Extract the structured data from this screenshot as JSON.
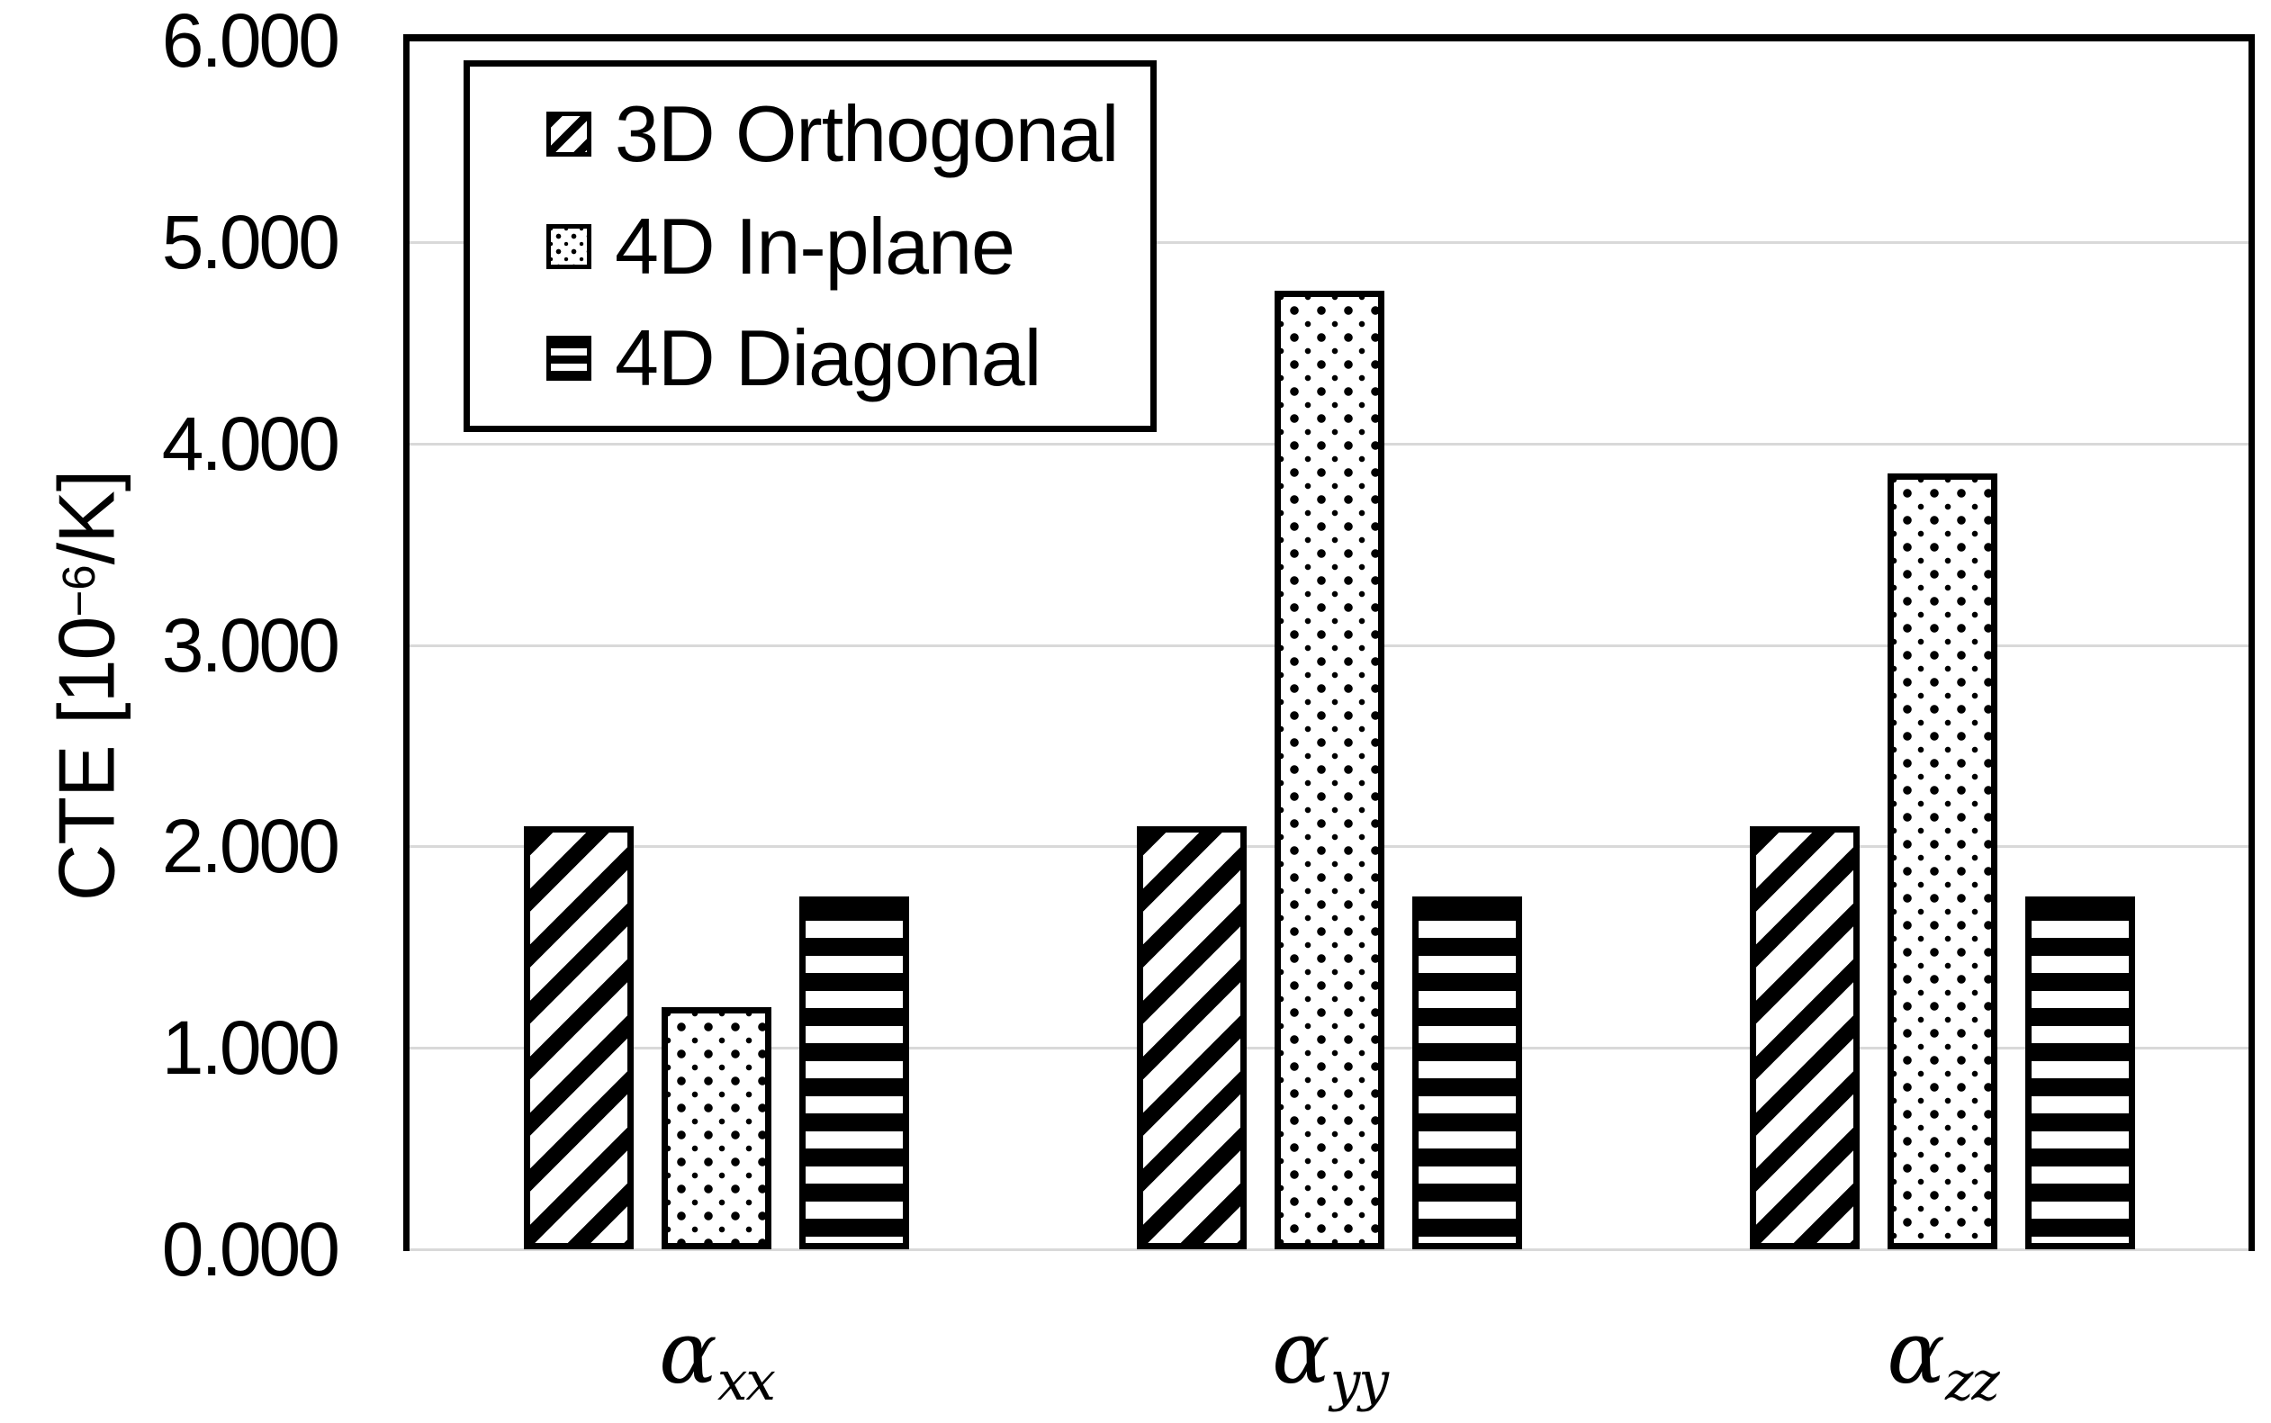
{
  "figure": {
    "background": "#ffffff",
    "ink_color": "#000000",
    "gridline_color": "#d9d9d9"
  },
  "chart_data": {
    "type": "bar",
    "title": "",
    "ylabel": "CTE [10⁻⁶/K]",
    "ylabel_parts": {
      "pre": "CTE [10",
      "sup": "−6",
      "post": "/K]"
    },
    "categories": [
      "αxx",
      "αyy",
      "αzz"
    ],
    "categories_parts": [
      {
        "base": "α",
        "sub": "xx"
      },
      {
        "base": "α",
        "sub": "yy"
      },
      {
        "base": "α",
        "sub": "zz"
      }
    ],
    "series": [
      {
        "name": "3D Orthogonal",
        "pattern": "diagonal-hatch",
        "values": [
          2.1,
          2.1,
          2.1
        ]
      },
      {
        "name": "4D In-plane",
        "pattern": "dots",
        "values": [
          1.2,
          4.76,
          3.85
        ]
      },
      {
        "name": "4D Diagonal",
        "pattern": "horizontal-stripes",
        "values": [
          1.75,
          1.75,
          1.75
        ]
      }
    ],
    "ylim": [
      0,
      6
    ],
    "ytick_step": 1,
    "ytick_labels": [
      "0.000",
      "1.000",
      "2.000",
      "3.000",
      "4.000",
      "5.000",
      "6.000"
    ],
    "grid": true,
    "legend_position": "top-left"
  }
}
